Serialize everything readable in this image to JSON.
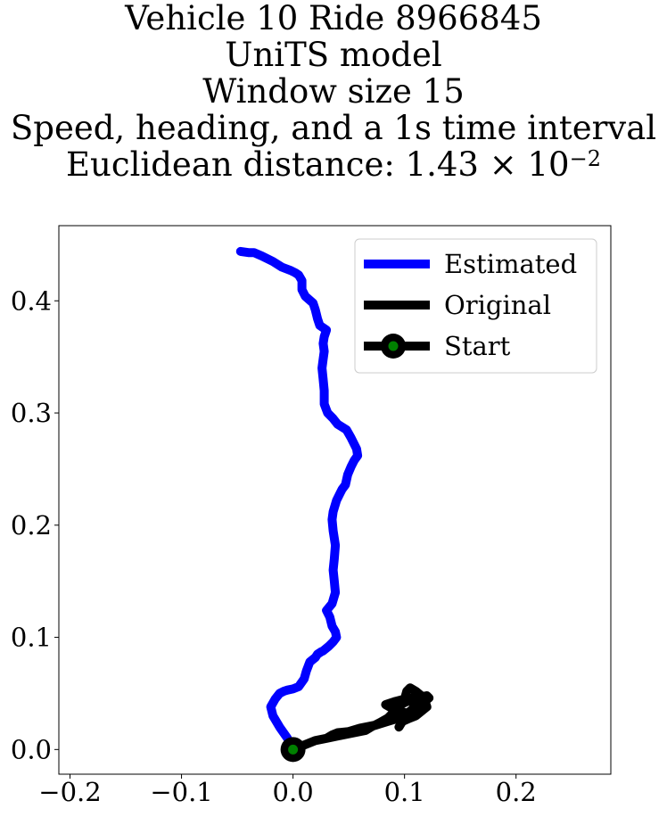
{
  "chart_data": {
    "type": "line",
    "title_lines": [
      "Vehicle 10 Ride 8966845",
      "UniTS model",
      "Window size 15",
      "Speed, heading, and a 1s time interval"
    ],
    "title_distance": {
      "prefix": "Euclidean distance: 1.43 × 10",
      "exponent": "−2"
    },
    "xlim": [
      -0.21,
      0.285
    ],
    "ylim": [
      -0.022,
      0.467
    ],
    "xticks": [
      -0.2,
      -0.1,
      0.0,
      0.1,
      0.2
    ],
    "xtick_labels": [
      "−0.2",
      "−0.1",
      "0.0",
      "0.1",
      "0.2"
    ],
    "yticks": [
      0.0,
      0.1,
      0.2,
      0.3,
      0.4
    ],
    "ytick_labels": [
      "0.0",
      "0.1",
      "0.2",
      "0.3",
      "0.4"
    ],
    "grid": false,
    "legend_position": "upper right",
    "series": [
      {
        "name": "Estimated",
        "color": "#0000ff",
        "x": [
          0.0,
          -0.005,
          -0.012,
          -0.018,
          -0.02,
          -0.016,
          -0.012,
          -0.008,
          -0.005,
          0.0,
          0.005,
          0.01,
          0.012,
          0.015,
          0.02,
          0.022,
          0.025,
          0.027,
          0.032,
          0.036,
          0.039,
          0.038,
          0.035,
          0.033,
          0.03,
          0.035,
          0.038,
          0.037,
          0.036,
          0.037,
          0.038,
          0.036,
          0.035,
          0.036,
          0.039,
          0.042,
          0.044,
          0.047,
          0.049,
          0.052,
          0.055,
          0.058,
          0.057,
          0.052,
          0.048,
          0.04,
          0.036,
          0.031,
          0.028,
          0.028,
          0.028,
          0.027,
          0.026,
          0.027,
          0.028,
          0.027,
          0.028,
          0.03,
          0.024,
          0.022,
          0.02,
          0.018,
          0.011,
          0.008,
          0.008,
          0.005,
          0.002,
          -0.002,
          -0.01,
          -0.018,
          -0.028,
          -0.035,
          -0.04,
          -0.047
        ],
        "y": [
          0.0,
          0.01,
          0.02,
          0.03,
          0.038,
          0.045,
          0.05,
          0.052,
          0.053,
          0.054,
          0.056,
          0.063,
          0.07,
          0.078,
          0.082,
          0.085,
          0.087,
          0.088,
          0.092,
          0.096,
          0.1,
          0.105,
          0.11,
          0.118,
          0.124,
          0.13,
          0.14,
          0.15,
          0.16,
          0.17,
          0.182,
          0.195,
          0.205,
          0.212,
          0.222,
          0.228,
          0.232,
          0.236,
          0.245,
          0.252,
          0.258,
          0.262,
          0.268,
          0.278,
          0.285,
          0.29,
          0.295,
          0.3,
          0.308,
          0.315,
          0.32,
          0.33,
          0.34,
          0.348,
          0.355,
          0.362,
          0.368,
          0.374,
          0.378,
          0.384,
          0.392,
          0.398,
          0.404,
          0.41,
          0.418,
          0.423,
          0.425,
          0.427,
          0.43,
          0.435,
          0.44,
          0.443,
          0.443,
          0.444
        ]
      },
      {
        "name": "Original",
        "color": "#000000",
        "x": [
          0.0,
          0.01,
          0.02,
          0.03,
          0.04,
          0.05,
          0.06,
          0.075,
          0.085,
          0.09,
          0.095,
          0.1,
          0.09,
          0.083,
          0.092,
          0.1,
          0.108,
          0.115,
          0.12,
          0.122,
          0.115,
          0.108,
          0.1,
          0.095,
          0.092,
          0.096,
          0.105,
          0.11,
          0.102,
          0.095,
          0.085,
          0.075,
          0.062,
          0.05,
          0.04,
          0.035,
          0.03,
          0.04,
          0.055,
          0.065,
          0.07,
          0.078,
          0.085,
          0.09,
          0.095,
          0.1,
          0.102,
          0.105,
          0.11,
          0.115,
          0.118,
          0.12,
          0.115,
          0.11,
          0.105,
          0.098,
          0.095
        ],
        "y": [
          0.0,
          0.004,
          0.008,
          0.01,
          0.013,
          0.016,
          0.019,
          0.022,
          0.025,
          0.028,
          0.03,
          0.033,
          0.036,
          0.04,
          0.043,
          0.045,
          0.046,
          0.047,
          0.048,
          0.046,
          0.04,
          0.035,
          0.03,
          0.028,
          0.033,
          0.04,
          0.044,
          0.038,
          0.032,
          0.028,
          0.025,
          0.022,
          0.018,
          0.016,
          0.015,
          0.013,
          0.01,
          0.012,
          0.015,
          0.017,
          0.02,
          0.024,
          0.028,
          0.033,
          0.038,
          0.045,
          0.052,
          0.055,
          0.052,
          0.048,
          0.044,
          0.038,
          0.034,
          0.03,
          0.028,
          0.025,
          0.02
        ]
      },
      {
        "name": "Start",
        "color": "#000000",
        "marker_fill": "#008000",
        "x": [
          0.0
        ],
        "y": [
          0.0
        ]
      }
    ]
  }
}
